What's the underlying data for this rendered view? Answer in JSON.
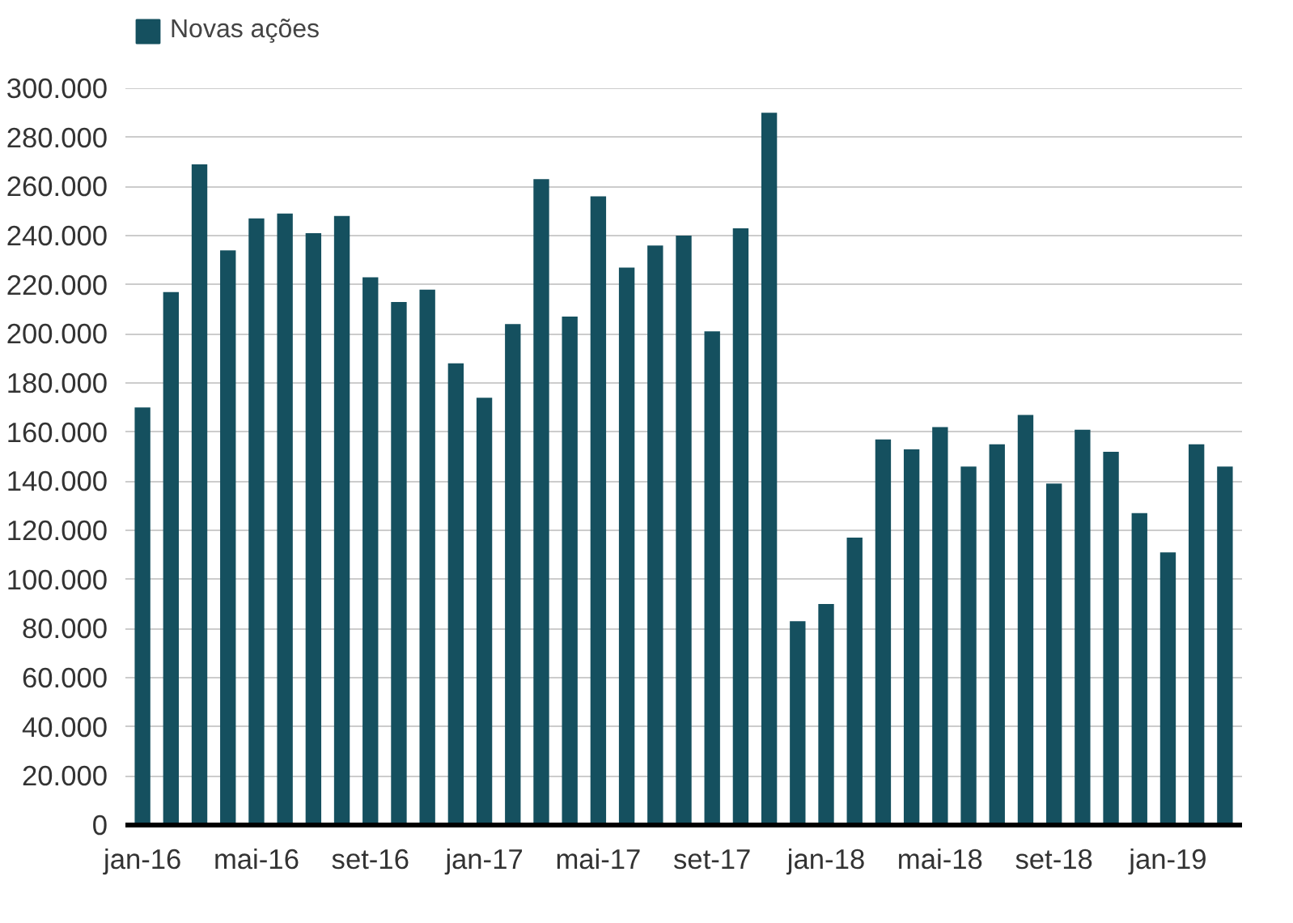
{
  "chart_data": {
    "type": "bar",
    "categories": [
      "jan-16",
      null,
      null,
      null,
      "mai-16",
      null,
      null,
      null,
      "set-16",
      null,
      null,
      null,
      "jan-17",
      null,
      null,
      null,
      "mai-17",
      null,
      null,
      null,
      "set-17",
      null,
      null,
      null,
      "jan-18",
      null,
      null,
      null,
      "mai-18",
      null,
      null,
      null,
      "set-18",
      null,
      null,
      null,
      "jan-19",
      null,
      null
    ],
    "series": [
      {
        "name": "Novas ações",
        "color": "#15505f",
        "values": [
          170000,
          217000,
          269000,
          234000,
          247000,
          249000,
          241000,
          248000,
          223000,
          213000,
          218000,
          188000,
          174000,
          204000,
          263000,
          207000,
          256000,
          227000,
          236000,
          240000,
          201000,
          243000,
          290000,
          83000,
          90000,
          117000,
          157000,
          153000,
          162000,
          146000,
          155000,
          167000,
          139000,
          161000,
          152000,
          127000,
          111000,
          155000,
          146000
        ]
      }
    ],
    "ylim": [
      0,
      300000
    ],
    "yticks": [
      {
        "value": 0,
        "label": "0"
      },
      {
        "value": 20000,
        "label": "20.000"
      },
      {
        "value": 40000,
        "label": "40.000"
      },
      {
        "value": 60000,
        "label": "60.000"
      },
      {
        "value": 80000,
        "label": "80.000"
      },
      {
        "value": 100000,
        "label": "100.000"
      },
      {
        "value": 120000,
        "label": "120.000"
      },
      {
        "value": 140000,
        "label": "140.000"
      },
      {
        "value": 160000,
        "label": "160.000"
      },
      {
        "value": 180000,
        "label": "180.000"
      },
      {
        "value": 200000,
        "label": "200.000"
      },
      {
        "value": 220000,
        "label": "220.000"
      },
      {
        "value": 240000,
        "label": "240.000"
      },
      {
        "value": 260000,
        "label": "260.000"
      },
      {
        "value": 280000,
        "label": "280.000"
      },
      {
        "value": 300000,
        "label": "300.000"
      }
    ],
    "grid": "y",
    "legend": "top left"
  }
}
